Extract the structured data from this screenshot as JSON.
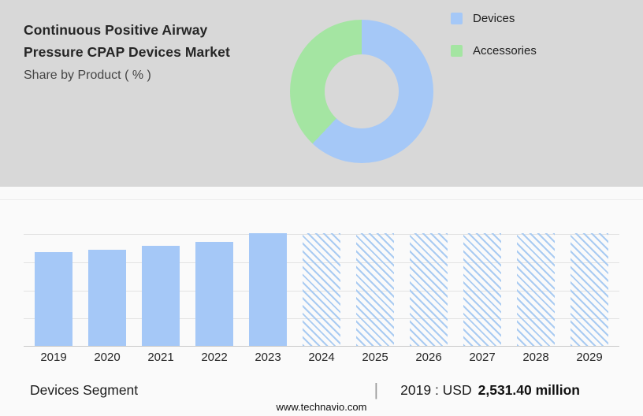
{
  "page": {
    "title_line1": "Continuous Positive Airway",
    "title_line2": "Pressure CPAP Devices Market",
    "subtitle": "Share by Product ( % )",
    "footer_site": "www.technavio.com"
  },
  "colors": {
    "devices_blue": "#a5c8f7",
    "accessories_green": "#a4e5a2",
    "top_background": "#d8d8d8",
    "bottom_background": "#fafafa"
  },
  "legend": {
    "items": [
      {
        "label": "Devices",
        "color": "#a5c8f7"
      },
      {
        "label": "Accessories",
        "color": "#a4e5a2"
      }
    ]
  },
  "chart_data": [
    {
      "type": "pie",
      "donut": true,
      "title": "Share by Product ( % )",
      "labels": [
        "Devices",
        "Accessories"
      ],
      "values": [
        62,
        38
      ],
      "colors": [
        "#a5c8f7",
        "#a4e5a2"
      ],
      "legend_position": "right",
      "start_angle_deg": 0,
      "note": "values estimated from arc angles; no numeric labels shown"
    },
    {
      "type": "bar",
      "categories": [
        "2019",
        "2020",
        "2021",
        "2022",
        "2023",
        "2024",
        "2025",
        "2026",
        "2027",
        "2028",
        "2029"
      ],
      "values": [
        83,
        85,
        89,
        92,
        100,
        100,
        100,
        100,
        100,
        100,
        100
      ],
      "unit": "relative height % (no value axis shown)",
      "forecast_from": "2024",
      "forecast_style": "diagonal-hatch",
      "bar_color": "#a5c8f7",
      "grid": true,
      "xlabel": "",
      "ylabel": ""
    }
  ],
  "bottom_bar": {
    "segment_label": "Devices Segment",
    "separator": "|",
    "value_prefix": "2019 : USD",
    "value_bold": "2,531.40 million"
  }
}
